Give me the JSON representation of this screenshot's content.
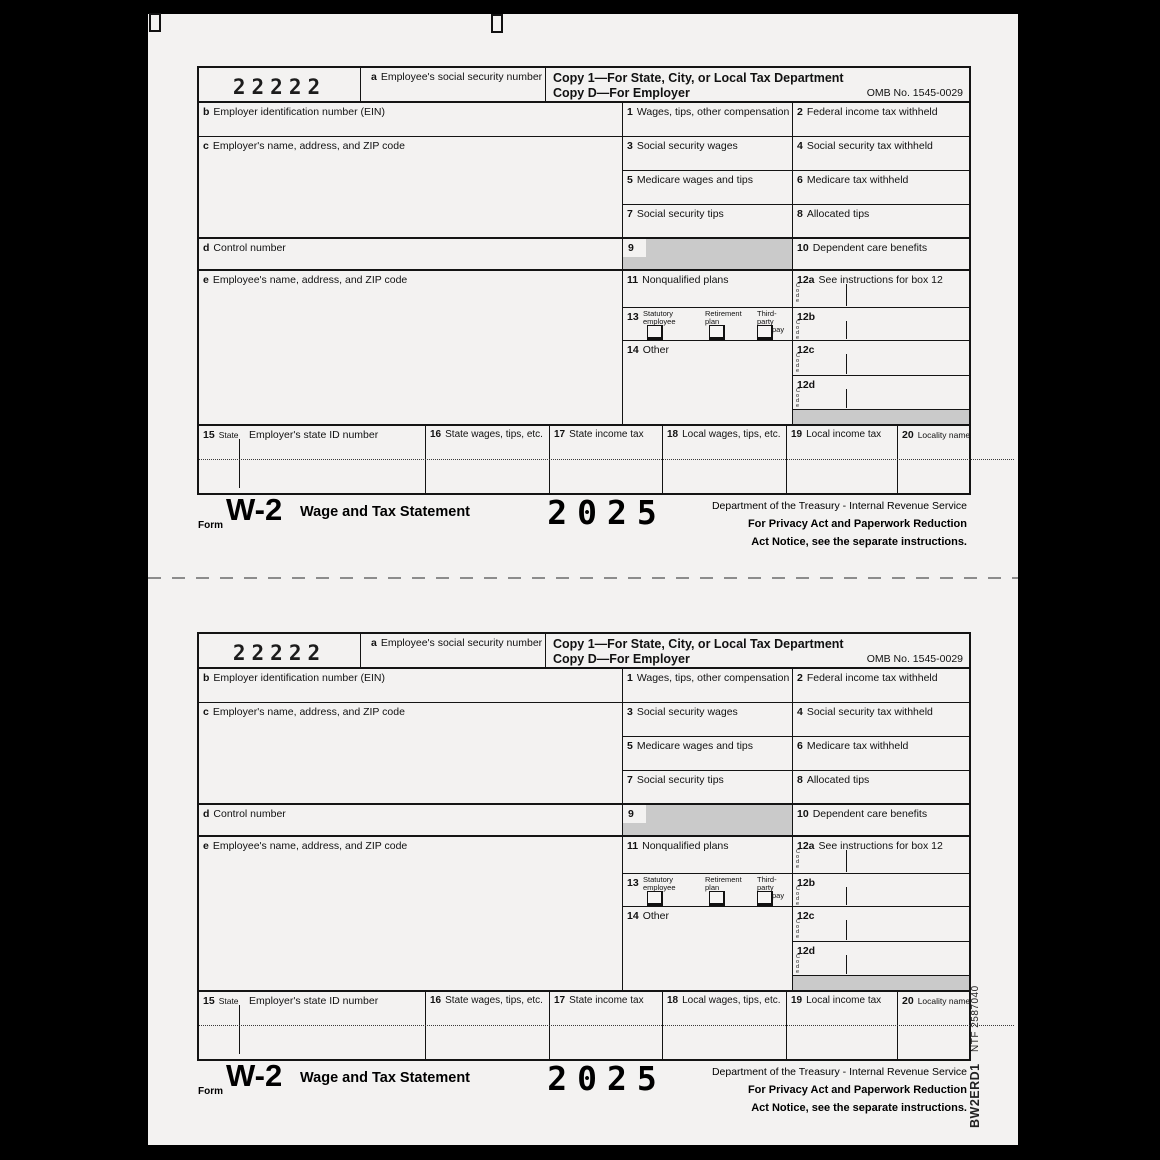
{
  "colors": {
    "background": "#000000",
    "paper": "#f3f2f1",
    "line": "#141414",
    "shaded_box": "#cacaca",
    "perforation": "#8c8c8c"
  },
  "side_text": {
    "ntf_number": "NTF 2587040",
    "form_code": "BW2ERD1"
  },
  "form": {
    "void_code": "22222",
    "box_a": {
      "prefix": "a",
      "label": "Employee's social security number"
    },
    "copy_line_1": "Copy 1—For State, City, or Local Tax Department",
    "copy_line_2": "Copy D—For Employer",
    "omb": "OMB No. 1545-0029",
    "box_b": {
      "prefix": "b",
      "label": "Employer identification number (EIN)"
    },
    "box_c": {
      "prefix": "c",
      "label": "Employer's name, address, and ZIP code"
    },
    "box_d": {
      "prefix": "d",
      "label": "Control number"
    },
    "box_e": {
      "prefix": "e",
      "label": "Employee's name, address, and ZIP code"
    },
    "box_1": {
      "prefix": "1",
      "label": "Wages, tips, other compensation"
    },
    "box_2": {
      "prefix": "2",
      "label": "Federal income tax withheld"
    },
    "box_3": {
      "prefix": "3",
      "label": "Social security wages"
    },
    "box_4": {
      "prefix": "4",
      "label": "Social security tax withheld"
    },
    "box_5": {
      "prefix": "5",
      "label": "Medicare wages and tips"
    },
    "box_6": {
      "prefix": "6",
      "label": "Medicare tax withheld"
    },
    "box_7": {
      "prefix": "7",
      "label": "Social security tips"
    },
    "box_8": {
      "prefix": "8",
      "label": "Allocated tips"
    },
    "box_9": {
      "prefix": "9"
    },
    "box_10": {
      "prefix": "10",
      "label": "Dependent care benefits"
    },
    "box_11": {
      "prefix": "11",
      "label": "Nonqualified plans"
    },
    "box_12a": {
      "prefix": "12a",
      "label": "See instructions for box 12"
    },
    "box_12b": {
      "prefix": "12b"
    },
    "box_12c": {
      "prefix": "12c"
    },
    "box_12d": {
      "prefix": "12d"
    },
    "code_label": "Code",
    "box_13": {
      "prefix": "13",
      "items": [
        {
          "line1": "Statutory",
          "line2": "employee"
        },
        {
          "line1": "Retirement",
          "line2": "plan"
        },
        {
          "line1": "Third-party",
          "line2": "sick pay"
        }
      ]
    },
    "box_14": {
      "prefix": "14",
      "label": "Other"
    },
    "box_15": {
      "prefix": "15",
      "label": "State",
      "label2": "Employer's state ID number"
    },
    "box_16": {
      "prefix": "16",
      "label": "State wages, tips, etc."
    },
    "box_17": {
      "prefix": "17",
      "label": "State income tax"
    },
    "box_18": {
      "prefix": "18",
      "label": "Local wages, tips, etc."
    },
    "box_19": {
      "prefix": "19",
      "label": "Local income tax"
    },
    "box_20": {
      "prefix": "20",
      "label": "Locality name"
    },
    "footer": {
      "form_word": "Form",
      "form_number": "W-2",
      "form_title": "Wage and Tax Statement",
      "year": "2025",
      "dept": "Department of the Treasury - Internal Revenue Service",
      "privacy_1": "For Privacy Act and Paperwork Reduction",
      "privacy_2": "Act Notice, see the separate instructions."
    }
  }
}
